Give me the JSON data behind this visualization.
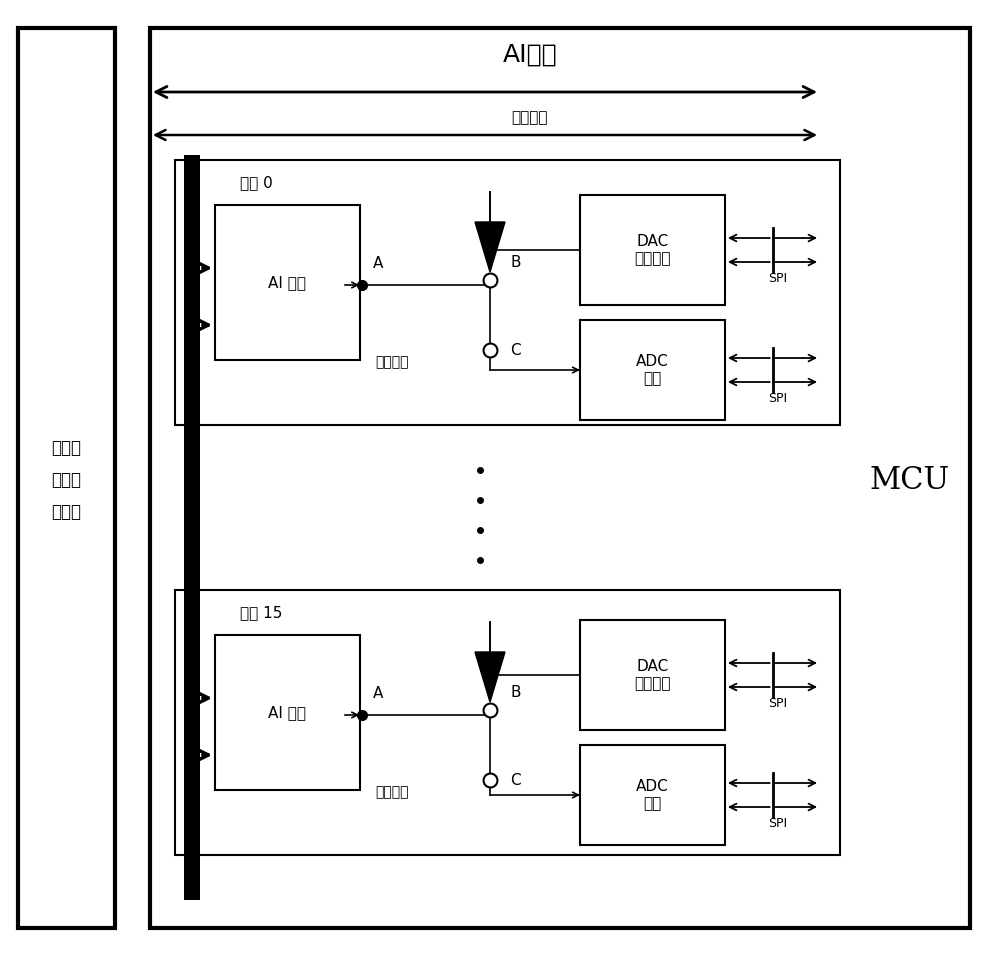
{
  "bg_color": "#ffffff",
  "line_color": "#000000",
  "title_ai": "AI模块",
  "title_serial": "串行通信",
  "left_label": "可编程\n仪用校\n准设备",
  "right_label": "MCU",
  "ch0_label": "通道 0",
  "ch15_label": "通道 15",
  "ai_front": "AI 前端",
  "dac_label": "DAC\n诊断输出",
  "adc_label": "ADC\n采集",
  "spi_label": "SPI",
  "ekswitch_label": "电控开关",
  "label_A": "A",
  "label_B": "B",
  "label_C": "C"
}
